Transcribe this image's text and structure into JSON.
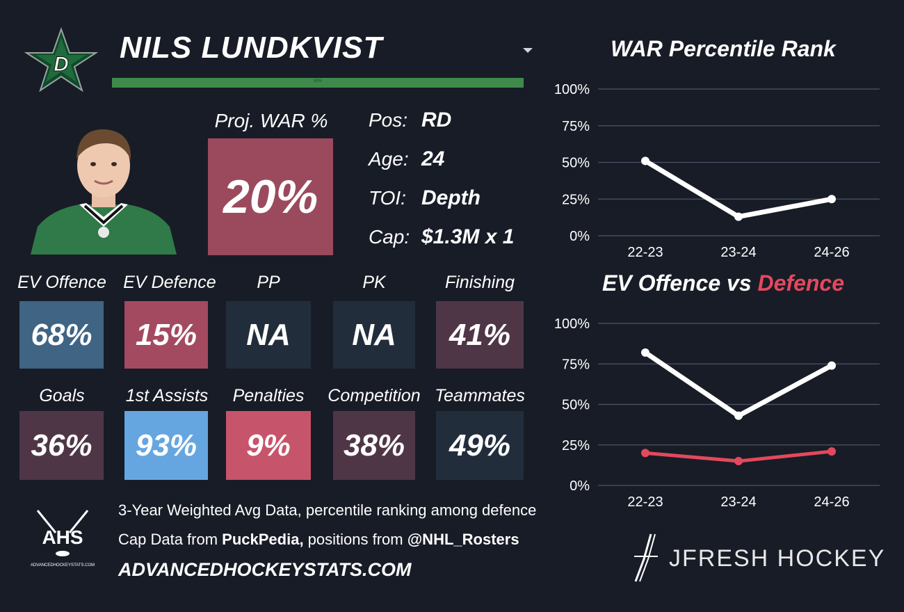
{
  "header": {
    "player_name": "NILS LUNDKVIST",
    "team_logo": "dallas-stars-logo",
    "green_bar_label": "50%"
  },
  "projection": {
    "label": "Proj. WAR %",
    "value": "20%"
  },
  "info": [
    {
      "key": "Pos:",
      "value": "RD"
    },
    {
      "key": "Age:",
      "value": "24"
    },
    {
      "key": "TOI:",
      "value": "Depth"
    },
    {
      "key": "Cap:",
      "value": "$1.3M x 1"
    }
  ],
  "tiles_row1": [
    {
      "label": "EV Offence",
      "value": "68%",
      "color": "#3f6484"
    },
    {
      "label": "EV Defence",
      "value": "15%",
      "color": "#a34a60"
    },
    {
      "label": "PP",
      "value": "NA",
      "color": "#222d3c"
    },
    {
      "label": "PK",
      "value": "NA",
      "color": "#222d3c"
    },
    {
      "label": "Finishing",
      "value": "41%",
      "color": "#4f3646"
    }
  ],
  "tiles_row2": [
    {
      "label": "Goals",
      "value": "36%",
      "color": "#4f3646"
    },
    {
      "label": "1st Assists",
      "value": "93%",
      "color": "#66a6e0"
    },
    {
      "label": "Penalties",
      "value": "9%",
      "color": "#c6546b"
    },
    {
      "label": "Competition",
      "value": "38%",
      "color": "#4f3646"
    },
    {
      "label": "Teammates",
      "value": "49%",
      "color": "#222d3c"
    }
  ],
  "footer": {
    "line1": "3-Year Weighted Avg Data, percentile ranking among defence",
    "line2_prefix": "Cap Data from ",
    "line2_source": "PuckPedia,",
    "line2_mid": " positions from ",
    "line2_handle": "@NHL_Rosters",
    "site": "ADVANCEDHOCKEYSTATS.COM",
    "ahs_logo_text": "AHS",
    "ahs_logo_subtext": "ADVANCEDHOCKEYSTATS.COM",
    "brand": "JFRESH HOCKEY"
  },
  "colors": {
    "background": "#181c26",
    "offence_line": "#ffffff",
    "defence_line": "#e4485e",
    "grid": "#4a5568"
  },
  "chart_data": [
    {
      "type": "line",
      "title": "WAR Percentile Rank",
      "categories": [
        "22-23",
        "23-24",
        "24-26"
      ],
      "y_ticks": [
        "100%",
        "75%",
        "50%",
        "25%",
        "0%"
      ],
      "ylim": [
        0,
        100
      ],
      "series": [
        {
          "values": [
            51,
            13,
            25
          ],
          "color": "#ffffff"
        }
      ]
    },
    {
      "type": "line",
      "title_part1": "EV Offence vs ",
      "title_part2": "Defence",
      "categories": [
        "22-23",
        "23-24",
        "24-26"
      ],
      "y_ticks": [
        "100%",
        "75%",
        "50%",
        "25%",
        "0%"
      ],
      "ylim": [
        0,
        100
      ],
      "series": [
        {
          "values": [
            82,
            43,
            74
          ],
          "color": "#ffffff"
        },
        {
          "values": [
            20,
            15,
            21
          ],
          "color": "#e4485e"
        }
      ]
    }
  ]
}
